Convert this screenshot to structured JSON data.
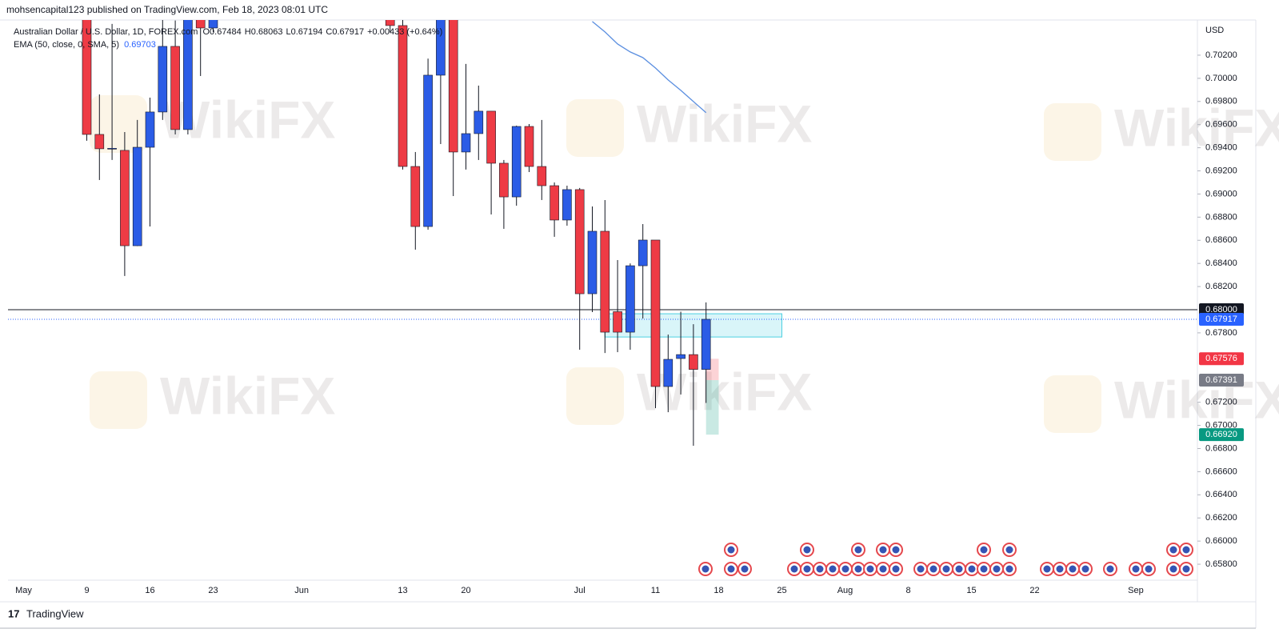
{
  "header": {
    "publisher": "mohsencapital123 published on TradingView.com, Feb 18, 2023 08:01 UTC"
  },
  "footer": {
    "brand": "TradingView"
  },
  "watermark": "WikiFX",
  "chart_data": {
    "type": "candlestick",
    "symbol": "Australian Dollar / U.S. Dollar, 1D, FOREX.com",
    "ohlc_labels": [
      "O0.67484",
      "H0.68063",
      "L0.67194",
      "C0.67917"
    ],
    "change": "+0.00433 (+0.64%)",
    "up_color": "#2b5ce6",
    "down_color": "#ee3b45",
    "wick_color": "#131722",
    "y_unit": "USD",
    "grid": false,
    "categories": [
      "May",
      null,
      null,
      null,
      null,
      "9",
      null,
      null,
      null,
      null,
      "16",
      null,
      null,
      null,
      null,
      "23",
      null,
      null,
      null,
      null,
      null,
      null,
      "Jun",
      null,
      null,
      null,
      null,
      null,
      null,
      null,
      "13",
      null,
      null,
      null,
      null,
      "20",
      null,
      null,
      null,
      null,
      null,
      null,
      null,
      null,
      "Jul",
      null,
      null,
      null,
      null,
      null,
      "11",
      null,
      null,
      null,
      null,
      "18",
      null,
      null,
      null,
      null,
      "25",
      null,
      null,
      null,
      null,
      "Aug",
      null,
      null,
      null,
      null,
      "8",
      null,
      null,
      null,
      null,
      "15",
      null,
      null,
      null,
      null,
      "22",
      null,
      null,
      null,
      null,
      null,
      null,
      null,
      "Sep",
      null,
      null,
      null,
      null
    ],
    "ohlc": [
      null,
      null,
      null,
      null,
      null,
      [
        0.706,
        0.708,
        0.6946,
        0.69515
      ],
      [
        0.69515,
        0.69861,
        0.69121,
        0.69391
      ],
      [
        0.69391,
        0.7047,
        0.69294,
        0.69395
      ],
      [
        0.69377,
        0.69536,
        0.68291,
        0.68553
      ],
      [
        0.68553,
        0.6964,
        0.6855,
        0.69404
      ],
      [
        0.69404,
        0.69833,
        0.68719,
        0.69709
      ],
      [
        0.69709,
        0.7055,
        0.6964,
        0.70276
      ],
      [
        0.70276,
        0.705,
        0.69515,
        0.69557
      ],
      [
        0.69557,
        0.708,
        0.69515,
        0.706
      ],
      [
        0.707,
        0.709,
        0.7002,
        0.70435
      ],
      [
        0.70435,
        0.71,
        0.704,
        0.7075
      ],
      null,
      null,
      null,
      null,
      null,
      null,
      null,
      null,
      null,
      null,
      null,
      null,
      null,
      [
        0.706,
        0.708,
        0.704,
        0.70456
      ],
      [
        0.70456,
        0.706,
        0.69211,
        0.69238
      ],
      [
        0.69238,
        0.69363,
        0.68519,
        0.68719
      ],
      [
        0.68719,
        0.7017,
        0.68692,
        0.70027
      ],
      [
        0.70027,
        0.708,
        0.69432,
        0.706
      ],
      [
        0.706,
        0.707,
        0.68982,
        0.69363
      ],
      [
        0.69363,
        0.70124,
        0.69211,
        0.69522
      ],
      [
        0.69522,
        0.69937,
        0.69294,
        0.69716
      ],
      [
        0.69716,
        0.69716,
        0.68823,
        0.69266
      ],
      [
        0.69266,
        0.69294,
        0.68699,
        0.68975
      ],
      [
        0.68975,
        0.69591,
        0.68899,
        0.69584
      ],
      [
        0.69584,
        0.69605,
        0.6919,
        0.69238
      ],
      [
        0.69238,
        0.6964,
        0.68948,
        0.69072
      ],
      [
        0.69072,
        0.691,
        0.6863,
        0.68775
      ],
      [
        0.68775,
        0.69072,
        0.68726,
        0.69038
      ],
      [
        0.69038,
        0.69052,
        0.67654,
        0.68138
      ],
      [
        0.68138,
        0.68892,
        0.67979,
        0.68678
      ],
      [
        0.68678,
        0.68948,
        0.67626,
        0.67806
      ],
      [
        0.67983,
        0.68429,
        0.67633,
        0.67806
      ],
      [
        0.67806,
        0.684,
        0.67654,
        0.6838
      ],
      [
        0.6838,
        0.6874,
        0.67924,
        0.68602
      ],
      [
        0.68602,
        0.68602,
        0.67149,
        0.67336
      ],
      [
        0.67336,
        0.67785,
        0.67114,
        0.67571
      ],
      [
        0.67578,
        0.67983,
        0.67267,
        0.67612
      ],
      [
        0.67612,
        0.67875,
        0.66824,
        0.67484
      ],
      [
        0.67484,
        0.68063,
        0.67194,
        0.67917
      ],
      null,
      null,
      null,
      null,
      null,
      null,
      null,
      null,
      null,
      null,
      null,
      null,
      null,
      null,
      null,
      null,
      null,
      null,
      null,
      null,
      null,
      null,
      null,
      null,
      null,
      null,
      null,
      null,
      null,
      null,
      null,
      null,
      null,
      null,
      null,
      null,
      null,
      null
    ],
    "series": [
      {
        "name": "EMA (50, close, 0, SMA, 5)",
        "color": "#5b8fe0",
        "values": [
          null,
          null,
          null,
          null,
          null,
          null,
          null,
          null,
          null,
          null,
          null,
          null,
          null,
          null,
          null,
          null,
          null,
          null,
          null,
          null,
          null,
          null,
          null,
          null,
          null,
          null,
          null,
          null,
          null,
          null,
          null,
          null,
          null,
          null,
          null,
          null,
          null,
          null,
          null,
          null,
          null,
          null,
          null,
          null,
          null,
          0.70491,
          0.70401,
          0.70297,
          0.70228,
          0.70179,
          0.70089,
          0.69986,
          0.69896,
          0.69799,
          0.69703,
          null,
          null,
          null,
          null,
          null,
          null,
          null,
          null,
          null,
          null,
          null,
          null,
          null,
          null,
          null,
          null,
          null,
          null,
          null,
          null,
          null,
          null,
          null,
          null,
          null,
          null,
          null,
          null,
          null,
          null,
          null,
          null,
          null,
          null,
          null,
          null,
          null,
          null
        ]
      }
    ],
    "ylim": [
      0.65662,
      0.70504
    ],
    "yticks": [
      {
        "value": 0.702,
        "label": "0.70200"
      },
      {
        "value": 0.7,
        "label": "0.70000"
      },
      {
        "value": 0.698,
        "label": "0.69800"
      },
      {
        "value": 0.696,
        "label": "0.69600"
      },
      {
        "value": 0.694,
        "label": "0.69400"
      },
      {
        "value": 0.692,
        "label": "0.69200"
      },
      {
        "value": 0.69,
        "label": "0.69000"
      },
      {
        "value": 0.688,
        "label": "0.68800"
      },
      {
        "value": 0.686,
        "label": "0.68600"
      },
      {
        "value": 0.684,
        "label": "0.68400"
      },
      {
        "value": 0.682,
        "label": "0.68200"
      },
      {
        "value": 0.678,
        "label": "0.67800"
      },
      {
        "value": 0.672,
        "label": "0.67200"
      },
      {
        "value": 0.67,
        "label": "0.67000"
      },
      {
        "value": 0.668,
        "label": "0.66800"
      },
      {
        "value": 0.666,
        "label": "0.66600"
      },
      {
        "value": 0.664,
        "label": "0.66400"
      },
      {
        "value": 0.662,
        "label": "0.66200"
      },
      {
        "value": 0.66,
        "label": "0.66000"
      },
      {
        "value": 0.658,
        "label": "0.65800"
      }
    ],
    "axis_tags": [
      {
        "value": 0.68,
        "label": "0.68000",
        "color": "#131722",
        "line": "solid"
      },
      {
        "value": 0.67917,
        "label": "0.67917",
        "color": "#2962ff",
        "line": "dotted"
      },
      {
        "value": 0.67576,
        "label": "0.67576",
        "color": "#f23645"
      },
      {
        "value": 0.67391,
        "label": "0.67391",
        "color": "#787b86"
      },
      {
        "value": 0.6692,
        "label": "0.66920",
        "color": "#089981"
      }
    ],
    "zone": {
      "low": 0.67764,
      "high": 0.67965,
      "from": 46,
      "to": 60
    },
    "position": {
      "from": 54,
      "to": 55
    }
  }
}
